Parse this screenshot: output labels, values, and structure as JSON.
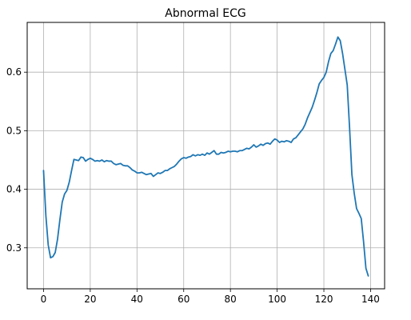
{
  "chart_data": {
    "type": "line",
    "title": "Abnormal ECG",
    "xlabel": "",
    "ylabel": "",
    "xlim": [
      -7,
      146
    ],
    "ylim": [
      0.23,
      0.685
    ],
    "grid": true,
    "x_ticks": [
      0,
      20,
      40,
      60,
      80,
      100,
      120,
      140
    ],
    "y_ticks": [
      0.3,
      0.4,
      0.5,
      0.6
    ],
    "x_tick_labels": [
      "0",
      "20",
      "40",
      "60",
      "80",
      "100",
      "120",
      "140"
    ],
    "y_tick_labels": [
      "0.3",
      "0.4",
      "0.5",
      "0.6"
    ],
    "line_color": "#1f77b4",
    "grid_color": "#b0b0b0",
    "series": [
      {
        "x_start": 0,
        "x_step": 1,
        "values": [
          0.432,
          0.355,
          0.305,
          0.283,
          0.285,
          0.292,
          0.315,
          0.348,
          0.378,
          0.392,
          0.398,
          0.412,
          0.432,
          0.451,
          0.45,
          0.449,
          0.455,
          0.454,
          0.448,
          0.451,
          0.453,
          0.451,
          0.448,
          0.449,
          0.448,
          0.45,
          0.447,
          0.449,
          0.448,
          0.448,
          0.444,
          0.442,
          0.443,
          0.444,
          0.441,
          0.44,
          0.44,
          0.437,
          0.433,
          0.431,
          0.428,
          0.428,
          0.429,
          0.427,
          0.425,
          0.426,
          0.427,
          0.422,
          0.425,
          0.428,
          0.427,
          0.429,
          0.432,
          0.432,
          0.435,
          0.437,
          0.439,
          0.443,
          0.448,
          0.452,
          0.454,
          0.453,
          0.455,
          0.456,
          0.459,
          0.457,
          0.459,
          0.458,
          0.46,
          0.458,
          0.462,
          0.46,
          0.463,
          0.466,
          0.46,
          0.46,
          0.463,
          0.462,
          0.463,
          0.465,
          0.464,
          0.465,
          0.465,
          0.464,
          0.466,
          0.466,
          0.468,
          0.47,
          0.469,
          0.472,
          0.476,
          0.472,
          0.474,
          0.477,
          0.475,
          0.478,
          0.479,
          0.477,
          0.482,
          0.486,
          0.484,
          0.48,
          0.482,
          0.481,
          0.483,
          0.482,
          0.48,
          0.486,
          0.488,
          0.493,
          0.498,
          0.503,
          0.511,
          0.522,
          0.531,
          0.54,
          0.552,
          0.565,
          0.58,
          0.586,
          0.591,
          0.6,
          0.618,
          0.632,
          0.637,
          0.648,
          0.66,
          0.654,
          0.632,
          0.605,
          0.578,
          0.505,
          0.425,
          0.393,
          0.367,
          0.359,
          0.35,
          0.31,
          0.265,
          0.252
        ]
      }
    ]
  }
}
